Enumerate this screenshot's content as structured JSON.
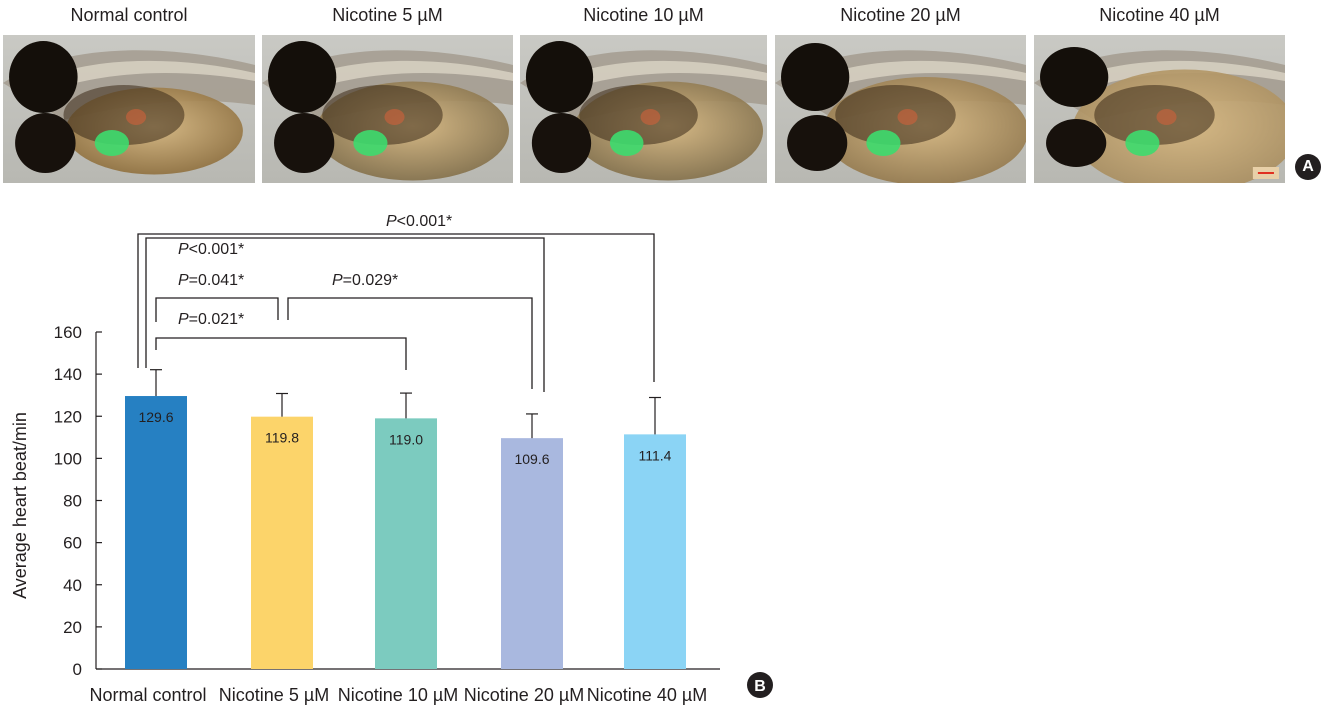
{
  "panel_a": {
    "label": "A",
    "images": [
      {
        "title": "Normal control",
        "fish_variant": "normal"
      },
      {
        "title": "Nicotine 5 µM",
        "fish_variant": "mild"
      },
      {
        "title": "Nicotine 10 µM",
        "fish_variant": "mild"
      },
      {
        "title": "Nicotine 20 µM",
        "fish_variant": "moderate"
      },
      {
        "title": "Nicotine 40 µM",
        "fish_variant": "severe"
      }
    ],
    "scale_bar_color": "#e03020",
    "heart_color": "#3ddc6e"
  },
  "chart_data": {
    "type": "bar",
    "panel_label": "B",
    "categories": [
      "Normal control",
      "Nicotine 5 µM",
      "Nicotine 10 µM",
      "Nicotine 20 µM",
      "Nicotine 40 µM"
    ],
    "values": [
      129.6,
      119.8,
      119.0,
      109.6,
      111.4
    ],
    "value_labels": [
      "129.6",
      "119.8",
      "119.0",
      "109.6",
      "111.4"
    ],
    "errors": [
      12.5,
      11.0,
      12.0,
      11.5,
      17.5
    ],
    "colors": [
      "#2680c2",
      "#fcd46a",
      "#7ccbbf",
      "#a9b8df",
      "#8bd4f5"
    ],
    "ylabel": "Average heart beat/min",
    "ylim": [
      0,
      160
    ],
    "yticks": [
      0,
      20,
      40,
      60,
      80,
      100,
      120,
      140,
      160
    ],
    "grid": false,
    "significance": [
      {
        "from": 0,
        "to": 2,
        "label_italic": "P",
        "label_rest": "=0.021*"
      },
      {
        "from": 0,
        "to": 1,
        "label_italic": "P",
        "label_rest": "=0.041*"
      },
      {
        "from": 1,
        "to": 3,
        "label_italic": "P",
        "label_rest": "=0.029*"
      },
      {
        "from": 0,
        "to": 3,
        "label_italic": "P",
        "label_rest": "<0.001*"
      },
      {
        "from": 0,
        "to": 4,
        "label_italic": "P",
        "label_rest": "<0.001*"
      }
    ]
  }
}
